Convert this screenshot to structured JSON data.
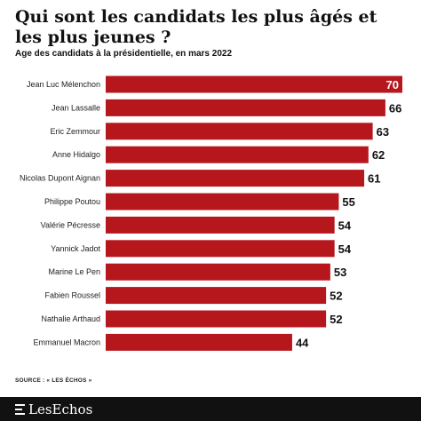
{
  "title": "Qui sont les candidats les plus âgés et les plus jeunes ?",
  "subtitle": "Age des candidats à la présidentielle, en mars 2022",
  "source": "SOURCE : « LES ÉCHOS »",
  "brand": {
    "name": "LesEchos"
  },
  "colors": {
    "bar": "#b5171d",
    "footer": "#111111"
  },
  "chart_data": {
    "type": "bar",
    "orientation": "horizontal",
    "title": "Qui sont les candidats les plus âgés et les plus jeunes ?",
    "subtitle": "Age des candidats à la présidentielle, en mars 2022",
    "categories": [
      "Jean Luc Mélenchon",
      "Jean Lassalle",
      "Eric Zemmour",
      "Anne Hidalgo",
      "Nicolas Dupont Aignan",
      "Philippe Poutou",
      "Valérie Pécresse",
      "Yannick Jadot",
      "Marine Le Pen",
      "Fabien Roussel",
      "Nathalie Arthaud",
      "Emmanuel Macron"
    ],
    "values": [
      70,
      66,
      63,
      62,
      61,
      55,
      54,
      54,
      53,
      52,
      52,
      44
    ],
    "xlim": [
      0,
      70
    ],
    "grid": false,
    "legend": "none"
  }
}
